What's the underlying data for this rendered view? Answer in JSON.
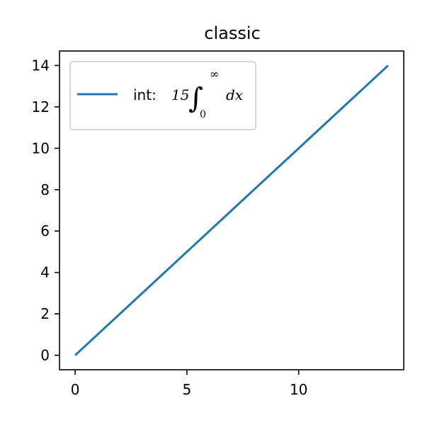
{
  "chart_data": {
    "type": "line",
    "title": "classic",
    "xlabel": "",
    "ylabel": "",
    "xlim": [
      -0.7,
      14.7
    ],
    "ylim": [
      -0.7,
      14.7
    ],
    "xticks": [
      0,
      5,
      10
    ],
    "yticks": [
      0,
      2,
      4,
      6,
      8,
      10,
      12,
      14
    ],
    "grid": false,
    "legend_position": "top-left",
    "series": [
      {
        "name": "int: 15∫₀^∞ dx",
        "legend_prefix": "int: ",
        "legend_math": {
          "coef": "15",
          "lower": "0",
          "upper": "∞",
          "differential": "dx"
        },
        "color": "#1f77b4",
        "x": [
          0,
          1,
          2,
          3,
          4,
          5,
          6,
          7,
          8,
          9,
          10,
          11,
          12,
          13,
          14
        ],
        "y": [
          0,
          1,
          2,
          3,
          4,
          5,
          6,
          7,
          8,
          9,
          10,
          11,
          12,
          13,
          14
        ]
      }
    ]
  }
}
